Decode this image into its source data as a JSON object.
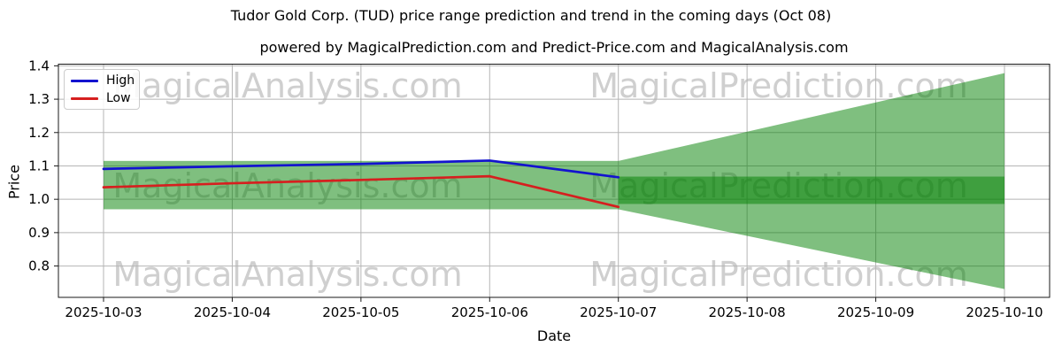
{
  "header": {
    "title": "Tudor Gold Corp. (TUD) price range prediction and trend in the coming days (Oct 08)",
    "subtitle": "powered by MagicalPrediction.com and Predict-Price.com and MagicalAnalysis.com"
  },
  "axes": {
    "xlabel": "Date",
    "ylabel": "Price"
  },
  "legend": {
    "entries": [
      {
        "label": "High",
        "color": "#1313cf"
      },
      {
        "label": "Low",
        "color": "#d61f1f"
      }
    ]
  },
  "chart_data": {
    "type": "line",
    "title": "Tudor Gold Corp. (TUD) price range prediction and trend in the coming days (Oct 08)",
    "subtitle": "powered by MagicalPrediction.com and Predict-Price.com and MagicalAnalysis.com",
    "xlabel": "Date",
    "ylabel": "Price",
    "x": [
      "2025-10-03",
      "2025-10-04",
      "2025-10-05",
      "2025-10-06",
      "2025-10-07",
      "2025-10-08",
      "2025-10-09",
      "2025-10-10"
    ],
    "series": [
      {
        "name": "High",
        "color": "#1313cf",
        "values": [
          1.091,
          1.099,
          1.106,
          1.116,
          1.066
        ]
      },
      {
        "name": "Low",
        "color": "#d61f1f",
        "values": [
          1.036,
          1.048,
          1.058,
          1.069,
          0.977
        ]
      }
    ],
    "bands": {
      "history_range": {
        "x_start": "2025-10-03",
        "x_end": "2025-10-07",
        "top": 1.115,
        "bottom": 0.97
      },
      "forecast_fan": {
        "x_start": "2025-10-07",
        "x_end": "2025-10-10",
        "top_start": 1.115,
        "bottom_start": 0.97,
        "top_end": 1.378,
        "bottom_end": 0.731
      },
      "forecast_band": {
        "x_start": "2025-10-07",
        "x_end": "2025-10-10",
        "top": 1.068,
        "bottom": 0.986
      }
    },
    "band_color": "rgba(0,128,0,0.5)",
    "ylim": [
      0.706,
      1.405
    ],
    "yticks": [
      0.8,
      0.9,
      1.0,
      1.1,
      1.2,
      1.3,
      1.4
    ],
    "grid": true,
    "grid_color": "#b5b5b5",
    "legend_position": "top-left",
    "watermarks": [
      "MagicalAnalysis.com",
      "MagicalPrediction.com"
    ],
    "watermark_color": "#cfcfcf"
  }
}
